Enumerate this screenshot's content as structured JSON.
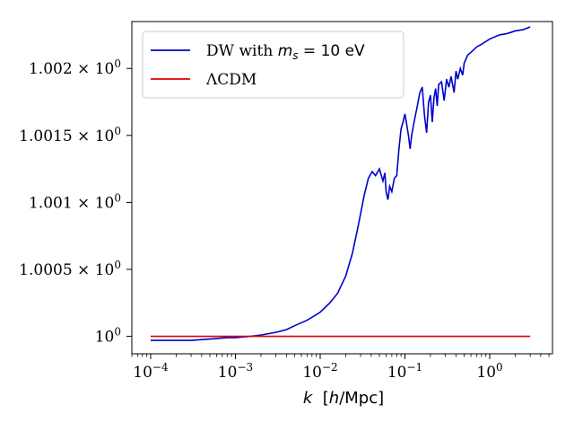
{
  "chart_data": {
    "type": "line",
    "xscale": "log",
    "xlim": [
      6e-05,
      5.5
    ],
    "ylim": [
      0.99987,
      1.00235
    ],
    "xlabel": "k  [h/Mpc]",
    "xtick_values": [
      0.0001,
      0.001,
      0.01,
      0.1,
      1
    ],
    "xtick_labels": [
      "10^{-4}",
      "10^{-3}",
      "10^{-2}",
      "10^{-1}",
      "10^{0}"
    ],
    "ytick_values": [
      1.0,
      1.0005,
      1.001,
      1.0015,
      1.002
    ],
    "ytick_labels": [
      "10^{0}",
      "1.0005 × 10^{0}",
      "1.001 × 10^{0}",
      "1.0015 × 10^{0}",
      "1.002 × 10^{0}"
    ],
    "grid": false,
    "legend_position": "top-left",
    "series": [
      {
        "name": "DW with m_s = 10 eV",
        "color": "#0000cc",
        "x": [
          0.0001,
          0.0002,
          0.0003,
          0.0005,
          0.0008,
          0.001,
          0.0015,
          0.002,
          0.003,
          0.004,
          0.005,
          0.007,
          0.01,
          0.013,
          0.016,
          0.02,
          0.024,
          0.028,
          0.033,
          0.037,
          0.041,
          0.045,
          0.05,
          0.055,
          0.058,
          0.06,
          0.063,
          0.066,
          0.07,
          0.075,
          0.08,
          0.085,
          0.09,
          0.095,
          0.1,
          0.105,
          0.11,
          0.115,
          0.12,
          0.13,
          0.14,
          0.15,
          0.16,
          0.17,
          0.18,
          0.19,
          0.2,
          0.21,
          0.22,
          0.23,
          0.24,
          0.25,
          0.27,
          0.29,
          0.31,
          0.33,
          0.35,
          0.38,
          0.4,
          0.42,
          0.45,
          0.48,
          0.5,
          0.55,
          0.6,
          0.7,
          0.8,
          1.0,
          1.3,
          1.6,
          2.0,
          2.5,
          3.0
        ],
        "y": [
          0.99997,
          0.99997,
          0.99997,
          0.99998,
          0.99999,
          0.99999,
          1.0,
          1.00001,
          1.00003,
          1.00005,
          1.00008,
          1.00012,
          1.00018,
          1.00025,
          1.00032,
          1.00045,
          1.00062,
          1.00082,
          1.00105,
          1.00118,
          1.00123,
          1.0012,
          1.00125,
          1.00116,
          1.00122,
          1.00108,
          1.00102,
          1.00112,
          1.00108,
          1.00118,
          1.0012,
          1.0014,
          1.00155,
          1.0016,
          1.00166,
          1.00158,
          1.0015,
          1.0014,
          1.0015,
          1.00162,
          1.00172,
          1.00182,
          1.00186,
          1.00165,
          1.00152,
          1.00175,
          1.0018,
          1.0016,
          1.00178,
          1.00185,
          1.00172,
          1.00188,
          1.0019,
          1.00176,
          1.00192,
          1.00186,
          1.00194,
          1.00182,
          1.00198,
          1.00192,
          1.002,
          1.00195,
          1.00204,
          1.0021,
          1.00212,
          1.00216,
          1.00218,
          1.00222,
          1.00225,
          1.00226,
          1.00228,
          1.00229,
          1.00231
        ]
      },
      {
        "name": "ΛCDM",
        "color": "#dd0000",
        "x": [
          0.0001,
          3.0
        ],
        "y": [
          1.0,
          1.0
        ]
      }
    ]
  }
}
